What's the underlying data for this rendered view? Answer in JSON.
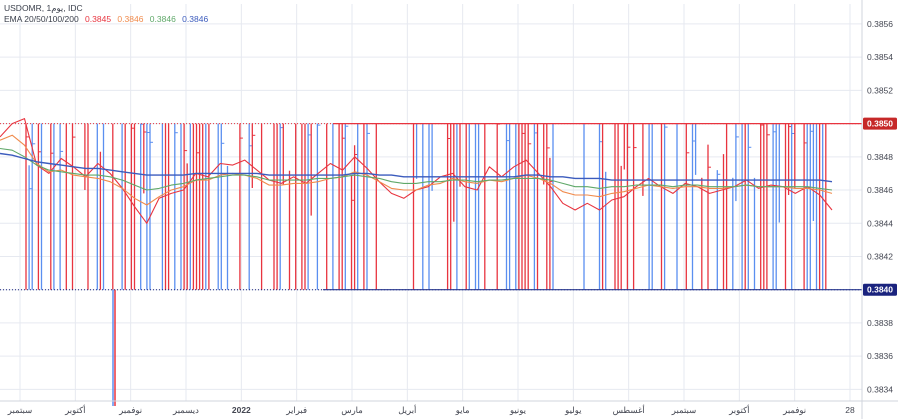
{
  "header": {
    "symbol_line": "USDOMR, 1يوم, IDC",
    "ema_label": "EMA 20/50/100/200",
    "ema_values": [
      "0.3845",
      "0.3846",
      "0.3846",
      "0.3846"
    ]
  },
  "colors": {
    "background": "#ffffff",
    "grid": "#e6e9f0",
    "up": "#5b8ff0",
    "down": "#e8343f",
    "ema20": "#e8343f",
    "ema50": "#f08a4b",
    "ema100": "#5fa869",
    "ema200": "#3b5bbd",
    "badge_high": "#c62828",
    "badge_low": "#1a237e"
  },
  "chart_data": {
    "type": "line",
    "title": "USDOMR, 1يوم, IDC",
    "y_axis_side": "right",
    "ylim": [
      0.38333,
      0.38572
    ],
    "y_ticks": [
      0.3834,
      0.3836,
      0.3838,
      0.384,
      0.3842,
      0.3844,
      0.3846,
      0.3848,
      0.385,
      0.3852,
      0.3854,
      0.3856
    ],
    "y_tick_labels": [
      "0.3834",
      "0.3836",
      "0.3838",
      "0.3840",
      "0.3842",
      "0.3844",
      "0.3846",
      "0.3848",
      "0.3850",
      "0.3852",
      "0.3854",
      "0.3856"
    ],
    "x_tick_labels": [
      "سبتمبر",
      "أكتوبر",
      "نوفمبر",
      "ديسمبر",
      "2022",
      "فبراير",
      "مارس",
      "أبريل",
      "مايو",
      "يونيو",
      "يوليو",
      "أغسطس",
      "سبتمبر",
      "أكتوبر",
      "نوفمبر",
      "28"
    ],
    "price_badges": [
      {
        "label": "0.3850",
        "value": 0.385,
        "kind": "high"
      },
      {
        "label": "0.3840",
        "value": 0.384,
        "kind": "low"
      }
    ],
    "reference_levels": [
      0.385,
      0.384
    ],
    "spike_low": 0.3833,
    "series": [
      {
        "key": "ema20",
        "color_key": "ema20",
        "values": [
          0.38492,
          0.385,
          0.38503,
          0.38475,
          0.3847,
          0.38479,
          0.38474,
          0.38468,
          0.38476,
          0.3847,
          0.38461,
          0.3845,
          0.3844,
          0.38455,
          0.38458,
          0.3846,
          0.3847,
          0.38468,
          0.38476,
          0.38475,
          0.38478,
          0.38472,
          0.38466,
          0.38464,
          0.38468,
          0.38464,
          0.3847,
          0.38476,
          0.38472,
          0.3848,
          0.38473,
          0.38465,
          0.38458,
          0.38455,
          0.3846,
          0.38462,
          0.38468,
          0.3847,
          0.38462,
          0.3846,
          0.38474,
          0.38468,
          0.38474,
          0.38478,
          0.3847,
          0.38462,
          0.38452,
          0.38448,
          0.38452,
          0.38448,
          0.38454,
          0.38456,
          0.38462,
          0.38467,
          0.38462,
          0.38458,
          0.38464,
          0.38462,
          0.38458,
          0.3846,
          0.38462,
          0.38466,
          0.38461,
          0.38463,
          0.38462,
          0.38458,
          0.38462,
          0.38457,
          0.38448
        ]
      },
      {
        "key": "ema50",
        "color_key": "ema50",
        "values": [
          0.3849,
          0.38493,
          0.38487,
          0.38476,
          0.38471,
          0.38472,
          0.38469,
          0.38468,
          0.38467,
          0.38465,
          0.38461,
          0.38455,
          0.38451,
          0.38456,
          0.3846,
          0.38462,
          0.38466,
          0.38466,
          0.38469,
          0.3847,
          0.38469,
          0.38467,
          0.38463,
          0.38463,
          0.38464,
          0.38464,
          0.38465,
          0.38467,
          0.38468,
          0.38471,
          0.38469,
          0.38465,
          0.38461,
          0.3846,
          0.3846,
          0.38463,
          0.38464,
          0.38467,
          0.38465,
          0.38464,
          0.38466,
          0.38465,
          0.38467,
          0.38469,
          0.38467,
          0.38464,
          0.38459,
          0.38457,
          0.38457,
          0.38456,
          0.38458,
          0.38459,
          0.38461,
          0.38463,
          0.38462,
          0.38461,
          0.38462,
          0.38462,
          0.38461,
          0.38461,
          0.38462,
          0.38463,
          0.38462,
          0.38462,
          0.38462,
          0.38461,
          0.38461,
          0.3846,
          0.38458
        ]
      },
      {
        "key": "ema100",
        "color_key": "ema100",
        "values": [
          0.38485,
          0.38484,
          0.3848,
          0.38475,
          0.38472,
          0.38471,
          0.3847,
          0.38469,
          0.38469,
          0.38468,
          0.38466,
          0.38463,
          0.3846,
          0.38461,
          0.38463,
          0.38464,
          0.38466,
          0.38467,
          0.38468,
          0.38469,
          0.38469,
          0.38468,
          0.38466,
          0.38466,
          0.38466,
          0.38466,
          0.38467,
          0.38467,
          0.38468,
          0.38469,
          0.38468,
          0.38467,
          0.38465,
          0.38464,
          0.38464,
          0.38465,
          0.38465,
          0.38466,
          0.38466,
          0.38465,
          0.38466,
          0.38466,
          0.38467,
          0.38467,
          0.38467,
          0.38466,
          0.38464,
          0.38462,
          0.38462,
          0.38461,
          0.38462,
          0.38462,
          0.38463,
          0.38463,
          0.38463,
          0.38462,
          0.38463,
          0.38463,
          0.38462,
          0.38462,
          0.38462,
          0.38463,
          0.38462,
          0.38462,
          0.38462,
          0.38462,
          0.38462,
          0.38461,
          0.3846
        ]
      },
      {
        "key": "ema200",
        "color_key": "ema200",
        "values": [
          0.38482,
          0.38481,
          0.38479,
          0.38477,
          0.38476,
          0.38475,
          0.38474,
          0.38473,
          0.38473,
          0.38472,
          0.38471,
          0.3847,
          0.38469,
          0.38469,
          0.38469,
          0.38469,
          0.3847,
          0.3847,
          0.3847,
          0.3847,
          0.3847,
          0.3847,
          0.38469,
          0.38469,
          0.38469,
          0.38469,
          0.38469,
          0.38469,
          0.38469,
          0.3847,
          0.3847,
          0.38469,
          0.38469,
          0.38468,
          0.38468,
          0.38468,
          0.38468,
          0.38468,
          0.38468,
          0.38468,
          0.38468,
          0.38468,
          0.38468,
          0.38469,
          0.38469,
          0.38468,
          0.38468,
          0.38467,
          0.38467,
          0.38467,
          0.38466,
          0.38466,
          0.38466,
          0.38466,
          0.38466,
          0.38466,
          0.38466,
          0.38466,
          0.38466,
          0.38466,
          0.38466,
          0.38466,
          0.38466,
          0.38466,
          0.38466,
          0.38466,
          0.38466,
          0.38466,
          0.38465
        ]
      }
    ]
  }
}
